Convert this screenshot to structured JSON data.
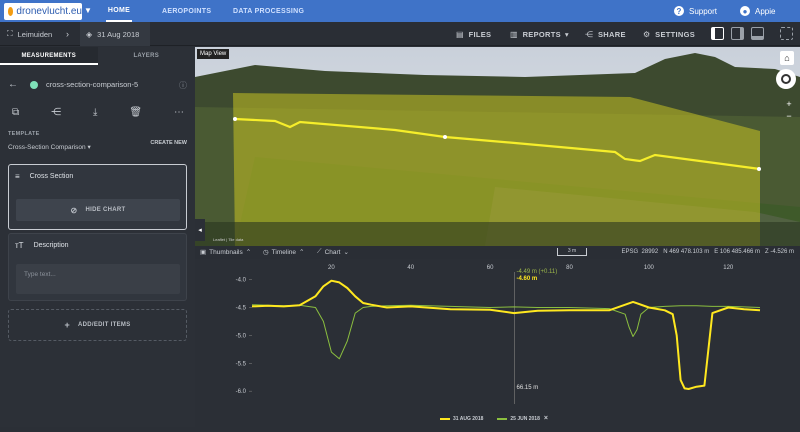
{
  "brand": {
    "logo_text": "dronevlucht.eu"
  },
  "nav": {
    "home": "HOME",
    "aeropoints": "AEROPOINTS",
    "data_processing": "DATA PROCESSING"
  },
  "account": {
    "support": "Support",
    "user": "Appie"
  },
  "toolbar": {
    "site": "Leimuiden",
    "date": "31 Aug 2018",
    "files": "FILES",
    "reports": "REPORTS",
    "share": "SHARE",
    "settings": "SETTINGS"
  },
  "sidebar": {
    "tabs": [
      "MEASUREMENTS",
      "LAYERS"
    ],
    "measurement_name": "cross-section-comparison-5",
    "template_label": "TEMPLATE",
    "template_value": "Cross-Section Comparison",
    "create_new": "CREATE NEW",
    "cross_section_title": "Cross Section",
    "hide_chart": "HIDE CHART",
    "description_title": "Description",
    "description_placeholder": "Type text...",
    "add_items": "ADD/EDIT ITEMS"
  },
  "map": {
    "label": "Map View",
    "epsg_label": "EPSG",
    "epsg": "28992",
    "n": "N 469 478.103 m",
    "e": "E 106 485.466 m",
    "z": "Z -4.526 m",
    "scale": "3 m",
    "attribution": "Leaflet | Tile data"
  },
  "tray": {
    "thumbnails": "Thumbnails",
    "timeline": "Timeline",
    "chart": "Chart"
  },
  "chart_data": {
    "type": "line",
    "x_ticks": [
      20,
      40,
      60,
      80,
      100,
      120
    ],
    "y_ticks": [
      -4.0,
      -4.5,
      -5.0,
      -5.5,
      -6.0
    ],
    "xlim": [
      0,
      128
    ],
    "ylim": [
      -6.05,
      -3.9
    ],
    "cursor": {
      "x": 66.15,
      "x_label": "66.15 m",
      "label_a": "-4.49 m (+0.11)",
      "label_b": "-4.60 m"
    },
    "series": [
      {
        "name": "31 AUG 2018",
        "color": "#ffe81f",
        "x": [
          0,
          4,
          8,
          12,
          16,
          18,
          20,
          22,
          24,
          26,
          28,
          30,
          34,
          40,
          50,
          60,
          66,
          72,
          80,
          90,
          96,
          100,
          104,
          106,
          107,
          108,
          109,
          110,
          112,
          114,
          116,
          120,
          124,
          128
        ],
        "y": [
          -4.48,
          -4.47,
          -4.48,
          -4.46,
          -4.3,
          -4.12,
          -4.02,
          -4.05,
          -4.15,
          -4.3,
          -4.42,
          -4.45,
          -4.5,
          -4.48,
          -4.53,
          -4.54,
          -4.6,
          -4.56,
          -4.55,
          -4.55,
          -4.4,
          -4.5,
          -4.55,
          -4.62,
          -5.0,
          -5.8,
          -5.95,
          -5.96,
          -5.92,
          -5.9,
          -4.6,
          -4.5,
          -4.53,
          -4.55
        ]
      },
      {
        "name": "25 JUN 2018",
        "color": "#8bbf3f",
        "x": [
          0,
          4,
          8,
          12,
          16,
          18,
          20,
          22,
          24,
          26,
          28,
          30,
          34,
          40,
          50,
          60,
          66,
          72,
          80,
          90,
          94,
          95,
          96,
          97,
          98,
          100,
          104,
          108,
          112,
          116,
          120,
          124,
          128
        ],
        "y": [
          -4.45,
          -4.46,
          -4.47,
          -4.46,
          -4.5,
          -4.75,
          -5.3,
          -5.42,
          -5.1,
          -4.6,
          -4.5,
          -4.48,
          -4.47,
          -4.46,
          -4.48,
          -4.5,
          -4.49,
          -4.5,
          -4.5,
          -4.52,
          -4.62,
          -4.85,
          -5.02,
          -4.9,
          -4.62,
          -4.5,
          -4.48,
          -4.47,
          -4.47,
          -4.48,
          -4.48,
          -4.49,
          -4.5
        ]
      }
    ]
  }
}
